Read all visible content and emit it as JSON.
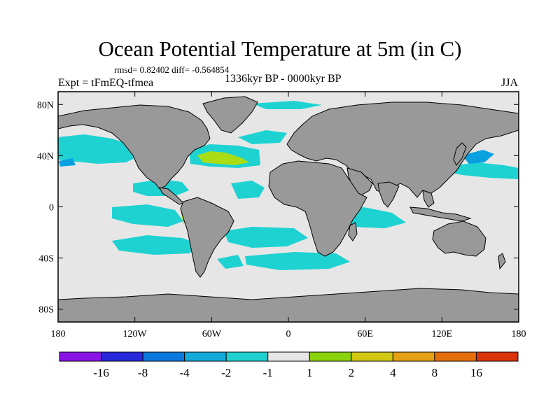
{
  "title": "Ocean Potential Temperature at 5m (in C)",
  "stats": "rmsd= 0.82402 diff= -0.564854",
  "experiment": "Expt = tFmEQ-tfmea",
  "period": "1336kyr BP - 0000kyr BP",
  "season": "JJA",
  "map": {
    "lat_ticks": [
      "80N",
      "40N",
      "0",
      "40S",
      "80S"
    ],
    "lat_values": [
      80,
      40,
      0,
      -40,
      -80
    ],
    "lon_ticks": [
      "180",
      "120W",
      "60W",
      "0",
      "60E",
      "120E",
      "180"
    ],
    "lon_values": [
      -180,
      -120,
      -60,
      0,
      60,
      120,
      180
    ],
    "lat_range": [
      -90,
      90
    ],
    "lon_range": [
      -180,
      180
    ],
    "ocean_color": "#e6e6e6",
    "land_color": "#999999",
    "anomaly_color_light": "#1ed2d2",
    "anomaly_color_mid": "#0aa0e0",
    "anomaly_color_strong": "#0a64dc",
    "anomaly_color_warm": "#aadc14"
  },
  "legend": {
    "colors": [
      "#8a14e6",
      "#2828dc",
      "#0a78dc",
      "#14aadc",
      "#1ed2d2",
      "#e6e6e6",
      "#8cd20a",
      "#d2c814",
      "#e6a014",
      "#e66e0a",
      "#dc320a"
    ],
    "labels": [
      "-16",
      "-8",
      "-4",
      "-2",
      "-1",
      "1",
      "2",
      "4",
      "8",
      "16"
    ]
  }
}
